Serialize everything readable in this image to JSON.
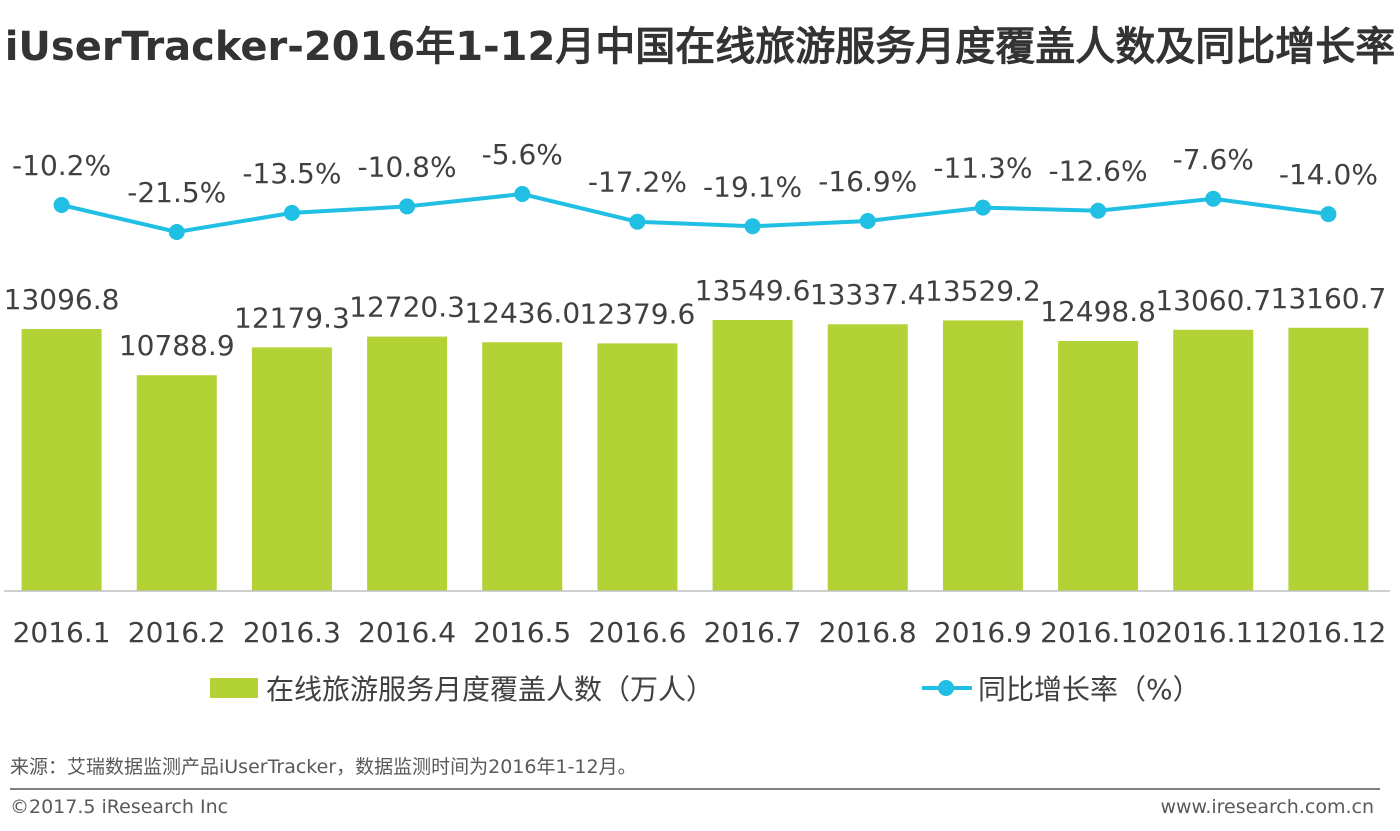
{
  "title": "iUserTracker-2016年1-12月中国在线旅游服务月度覆盖人数及同比增长率",
  "colors": {
    "bar": "#b2d235",
    "line": "#20bfe3",
    "axis": "#bfbfbf",
    "text": "#404040"
  },
  "legend": {
    "bar_label": "在线旅游服务月度覆盖人数（万人）",
    "line_label": "同比增长率（%）"
  },
  "source": "来源：艾瑞数据监测产品iUserTracker，数据监测时间为2016年1-12月。",
  "copyright": "©2017.5 iResearch Inc",
  "website": "www.iresearch.com.cn",
  "chart_data": {
    "type": "bar",
    "categories": [
      "2016.1",
      "2016.2",
      "2016.3",
      "2016.4",
      "2016.5",
      "2016.6",
      "2016.7",
      "2016.8",
      "2016.9",
      "2016.10",
      "2016.11",
      "2016.12"
    ],
    "series": [
      {
        "name": "在线旅游服务月度覆盖人数（万人）",
        "type": "bar",
        "values": [
          13096.8,
          10788.9,
          12179.3,
          12720.3,
          12436.0,
          12379.6,
          13549.6,
          13337.4,
          13529.2,
          12498.8,
          13060.7,
          13160.7
        ],
        "labels": [
          "13096.8",
          "10788.9",
          "12179.3",
          "12720.3",
          "12436.0",
          "12379.6",
          "13549.6",
          "13337.4",
          "13529.2",
          "12498.8",
          "13060.7",
          "13160.7"
        ]
      },
      {
        "name": "同比增长率（%）",
        "type": "line",
        "values": [
          -10.2,
          -21.5,
          -13.5,
          -10.8,
          -5.6,
          -17.2,
          -19.1,
          -16.9,
          -11.3,
          -12.6,
          -7.6,
          -14.0
        ],
        "labels": [
          "-10.2%",
          "-21.5%",
          "-13.5%",
          "-10.8%",
          "-5.6%",
          "-17.2%",
          "-19.1%",
          "-16.9%",
          "-11.3%",
          "-12.6%",
          "-7.6%",
          "-14.0%"
        ]
      }
    ],
    "grid": false,
    "legend_position": "bottom"
  }
}
